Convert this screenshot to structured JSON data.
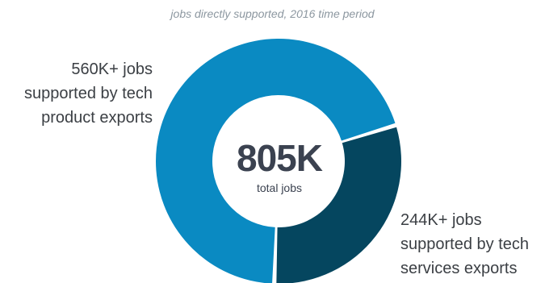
{
  "chart_data": {
    "type": "pie",
    "subtitle": "jobs directly supported, 2016 time period",
    "center_value": "805K",
    "center_label": "total jobs",
    "slices": [
      {
        "label_lines": [
          "560K+ jobs",
          "supported by tech",
          "product exports"
        ],
        "value": 561,
        "color": "#0a8ac2"
      },
      {
        "label_lines": [
          "244K+ jobs",
          "supported by tech",
          "services exports"
        ],
        "value": 244,
        "color": "#05465f"
      }
    ]
  }
}
